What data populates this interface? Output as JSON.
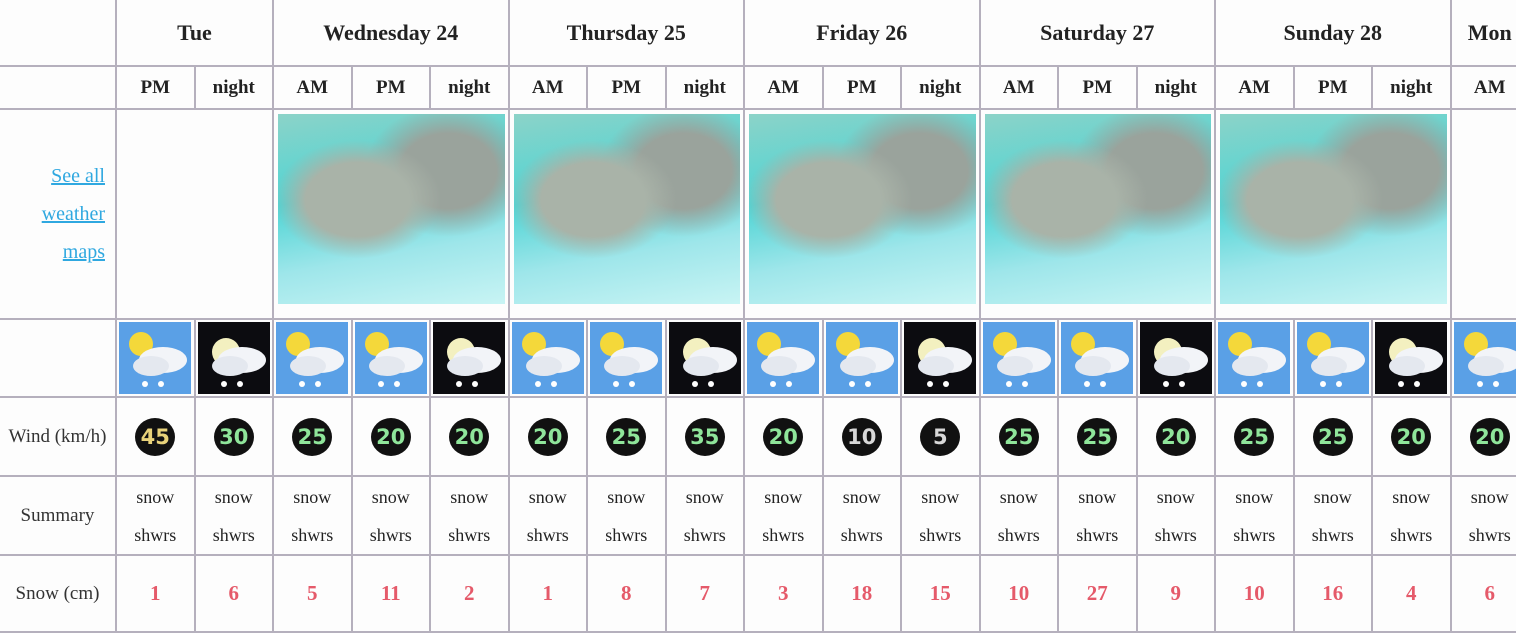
{
  "days": [
    "Tue",
    "Wednesday 24",
    "Thursday 25",
    "Friday 26",
    "Saturday 27",
    "Sunday 28",
    "Mon"
  ],
  "periods": [
    "PM",
    "night",
    "AM",
    "PM",
    "night",
    "AM",
    "PM",
    "night",
    "AM",
    "PM",
    "night",
    "AM",
    "PM",
    "night",
    "AM",
    "PM",
    "night",
    "AM"
  ],
  "maps_link": "See all weather maps",
  "row_labels": {
    "wind": "Wind (km/h)",
    "summary": "Summary",
    "snow": "Snow (cm)"
  },
  "wind": [
    45,
    30,
    25,
    20,
    20,
    20,
    25,
    35,
    20,
    10,
    5,
    25,
    25,
    20,
    25,
    25,
    20,
    20
  ],
  "summary": [
    "snow shwrs",
    "snow shwrs",
    "snow shwrs",
    "snow shwrs",
    "snow shwrs",
    "snow shwrs",
    "snow shwrs",
    "snow shwrs",
    "snow shwrs",
    "snow shwrs",
    "snow shwrs",
    "snow shwrs",
    "snow shwrs",
    "snow shwrs",
    "snow shwrs",
    "snow shwrs",
    "snow shwrs",
    "snow shwrs"
  ],
  "snow": [
    1,
    6,
    5,
    11,
    2,
    1,
    8,
    7,
    3,
    18,
    15,
    10,
    27,
    9,
    10,
    16,
    4,
    6
  ]
}
